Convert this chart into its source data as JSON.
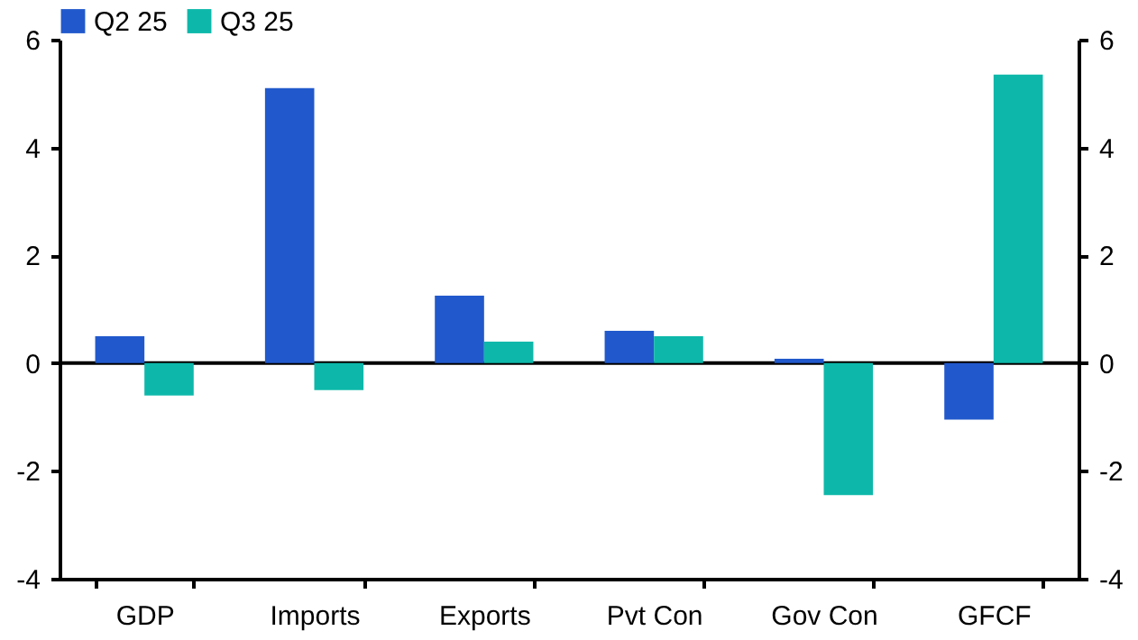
{
  "chart_data": {
    "type": "bar",
    "categories": [
      "GDP",
      "Imports",
      "Exports",
      "Pvt Con",
      "Gov Con",
      "GFCF"
    ],
    "series": [
      {
        "name": "Q2 25",
        "color": "#2159cc",
        "values": [
          0.5,
          5.1,
          1.25,
          0.6,
          0.08,
          -1.05
        ]
      },
      {
        "name": "Q3 25",
        "color": "#0db8aa",
        "values": [
          -0.6,
          -0.5,
          0.4,
          0.5,
          -2.45,
          5.35
        ]
      }
    ],
    "ylim": [
      -4,
      6
    ],
    "yticks": [
      -4,
      -2,
      0,
      2,
      4,
      6
    ],
    "y2lim": [
      -4,
      6
    ],
    "y2ticks": [
      -4,
      -2,
      0,
      2,
      4,
      6
    ],
    "ref_lines": [
      {
        "axis": "y",
        "value": 0,
        "color": "#000000"
      }
    ],
    "grid": false,
    "legend": "top"
  }
}
